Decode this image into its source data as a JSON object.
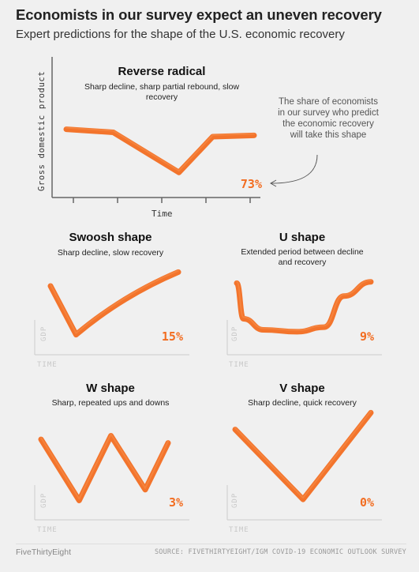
{
  "title": "Economists in our survey expect an uneven recovery",
  "subtitle": "Expert predictions for the shape of the U.S. economic recovery",
  "main_chart": {
    "ylabel": "Gross domestic product",
    "xlabel": "Time",
    "annotation": "The share of economists in our survey who predict the economic recovery will take this shape"
  },
  "footer": {
    "brand": "FiveThirtyEight",
    "source": "SOURCE: FIVETHIRTYEIGHT/IGM COVID-19 ECONOMIC OUTLOOK SURVEY"
  },
  "colors": {
    "line": "#f26d21",
    "pct": "#f26d21",
    "axis": "#666666",
    "axis_small": "#cccccc"
  },
  "chart_data": [
    {
      "type": "line",
      "title": "Reverse radical",
      "subtitle": "Sharp decline, sharp partial rebound, slow recovery",
      "value_label": "73%",
      "share_percent": 73,
      "xlabel": "Time",
      "ylabel": "Gross domestic product",
      "x": [
        0,
        0.25,
        0.6,
        0.78,
        1.0
      ],
      "y": [
        0.8,
        0.75,
        0.1,
        0.68,
        0.7
      ]
    },
    {
      "type": "line",
      "title": "Swoosh shape",
      "subtitle": "Sharp decline, slow recovery",
      "value_label": "15%",
      "share_percent": 15,
      "xlabel": "TIME",
      "ylabel": "GDP",
      "x": [
        0,
        0.2,
        1.0
      ],
      "y": [
        0.75,
        0.05,
        0.95
      ]
    },
    {
      "type": "line",
      "title": "U shape",
      "subtitle": "Extended period between decline and recovery",
      "value_label": "9%",
      "share_percent": 9,
      "xlabel": "TIME",
      "ylabel": "GDP",
      "x": [
        0,
        0.05,
        0.2,
        0.45,
        0.65,
        0.8,
        1.0
      ],
      "y": [
        0.8,
        0.25,
        0.08,
        0.05,
        0.12,
        0.6,
        0.82
      ]
    },
    {
      "type": "line",
      "title": "W shape",
      "subtitle": "Sharp, repeated ups and downs",
      "value_label": "3%",
      "share_percent": 3,
      "xlabel": "TIME",
      "ylabel": "GDP",
      "x": [
        0,
        0.3,
        0.55,
        0.82,
        1.0
      ],
      "y": [
        0.9,
        0.05,
        0.95,
        0.2,
        0.85
      ]
    },
    {
      "type": "line",
      "title": "V shape",
      "subtitle": "Sharp decline, quick recovery",
      "value_label": "0%",
      "share_percent": 0,
      "xlabel": "TIME",
      "ylabel": "GDP",
      "x": [
        0,
        0.5,
        1.0
      ],
      "y": [
        0.8,
        0.05,
        0.98
      ]
    }
  ]
}
